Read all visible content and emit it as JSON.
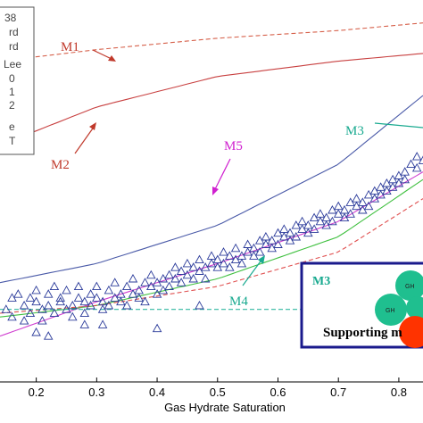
{
  "chart_data": {
    "type": "line",
    "xlabel": "Gas Hydrate Saturation",
    "ylabel": "",
    "xlim": [
      0.14,
      0.84
    ],
    "ylim": [
      0.0,
      1.0
    ],
    "x_ticks": [
      "0.2",
      "0.3",
      "0.4",
      "0.5",
      "0.6",
      "0.7",
      "0.8"
    ],
    "grid": false,
    "legend": {
      "placement": "top-left",
      "entries": [
        "38",
        "rd",
        "rd",
        "Lee",
        "0",
        "1",
        "2",
        "e",
        "T"
      ]
    },
    "series": [
      {
        "x": [
          0.14,
          0.3,
          0.5,
          0.7,
          0.84
        ],
        "y": [
          0.84,
          0.87,
          0.9,
          0.92,
          0.94
        ],
        "style": "dashed",
        "color": "#d6604a"
      },
      {
        "x": [
          0.14,
          0.3,
          0.5,
          0.7,
          0.84
        ],
        "y": [
          0.62,
          0.72,
          0.8,
          0.84,
          0.86
        ],
        "style": "solid",
        "color": "#c84040"
      },
      {
        "x": [
          0.14,
          0.3,
          0.5,
          0.7,
          0.84
        ],
        "y": [
          0.26,
          0.31,
          0.41,
          0.57,
          0.75
        ],
        "style": "solid",
        "color": "#4a5aa8"
      },
      {
        "x": [
          0.14,
          0.3,
          0.5,
          0.7,
          0.84
        ],
        "y": [
          0.12,
          0.21,
          0.31,
          0.42,
          0.55
        ],
        "style": "solid",
        "color": "#d040d0"
      },
      {
        "x": [
          0.14,
          0.3,
          0.5,
          0.7,
          0.84
        ],
        "y": [
          0.17,
          0.2,
          0.27,
          0.38,
          0.53
        ],
        "style": "solid",
        "color": "#40c040"
      },
      {
        "x": [
          0.14,
          0.3,
          0.5,
          0.7,
          0.84
        ],
        "y": [
          0.18,
          0.2,
          0.25,
          0.34,
          0.48
        ],
        "style": "dashed",
        "color": "#e05050"
      },
      {
        "x": [
          0.14,
          0.3,
          0.5,
          0.7,
          0.84
        ],
        "y": [
          0.19,
          0.19,
          0.19,
          0.19,
          0.19
        ],
        "style": "dashed",
        "color": "#30b8a0"
      }
    ],
    "measurements": {
      "marker": "triangle",
      "color": "#2b3b9a",
      "points": [
        [
          0.15,
          0.19
        ],
        [
          0.16,
          0.22
        ],
        [
          0.16,
          0.17
        ],
        [
          0.17,
          0.23
        ],
        [
          0.18,
          0.2
        ],
        [
          0.18,
          0.16
        ],
        [
          0.19,
          0.22
        ],
        [
          0.19,
          0.18
        ],
        [
          0.2,
          0.21
        ],
        [
          0.2,
          0.24
        ],
        [
          0.21,
          0.19
        ],
        [
          0.21,
          0.16
        ],
        [
          0.22,
          0.23
        ],
        [
          0.22,
          0.2
        ],
        [
          0.23,
          0.25
        ],
        [
          0.23,
          0.18
        ],
        [
          0.24,
          0.21
        ],
        [
          0.24,
          0.22
        ],
        [
          0.25,
          0.19
        ],
        [
          0.25,
          0.24
        ],
        [
          0.26,
          0.2
        ],
        [
          0.26,
          0.17
        ],
        [
          0.27,
          0.22
        ],
        [
          0.27,
          0.25
        ],
        [
          0.28,
          0.21
        ],
        [
          0.28,
          0.18
        ],
        [
          0.29,
          0.23
        ],
        [
          0.29,
          0.2
        ],
        [
          0.3,
          0.22
        ],
        [
          0.3,
          0.25
        ],
        [
          0.31,
          0.19
        ],
        [
          0.31,
          0.21
        ],
        [
          0.32,
          0.24
        ],
        [
          0.32,
          0.2
        ],
        [
          0.33,
          0.22
        ],
        [
          0.33,
          0.26
        ],
        [
          0.34,
          0.21
        ],
        [
          0.34,
          0.23
        ],
        [
          0.35,
          0.25
        ],
        [
          0.35,
          0.2
        ],
        [
          0.36,
          0.23
        ],
        [
          0.36,
          0.27
        ],
        [
          0.37,
          0.22
        ],
        [
          0.37,
          0.24
        ],
        [
          0.38,
          0.26
        ],
        [
          0.38,
          0.21
        ],
        [
          0.39,
          0.25
        ],
        [
          0.39,
          0.28
        ],
        [
          0.4,
          0.23
        ],
        [
          0.4,
          0.26
        ],
        [
          0.41,
          0.27
        ],
        [
          0.41,
          0.24
        ],
        [
          0.42,
          0.28
        ],
        [
          0.42,
          0.25
        ],
        [
          0.43,
          0.27
        ],
        [
          0.43,
          0.3
        ],
        [
          0.44,
          0.26
        ],
        [
          0.44,
          0.29
        ],
        [
          0.45,
          0.28
        ],
        [
          0.45,
          0.31
        ],
        [
          0.46,
          0.27
        ],
        [
          0.46,
          0.3
        ],
        [
          0.47,
          0.29
        ],
        [
          0.47,
          0.32
        ],
        [
          0.48,
          0.3
        ],
        [
          0.48,
          0.27
        ],
        [
          0.49,
          0.31
        ],
        [
          0.49,
          0.33
        ],
        [
          0.5,
          0.3
        ],
        [
          0.5,
          0.32
        ],
        [
          0.51,
          0.31
        ],
        [
          0.51,
          0.34
        ],
        [
          0.52,
          0.33
        ],
        [
          0.52,
          0.3
        ],
        [
          0.53,
          0.32
        ],
        [
          0.53,
          0.35
        ],
        [
          0.54,
          0.33
        ],
        [
          0.54,
          0.31
        ],
        [
          0.55,
          0.34
        ],
        [
          0.55,
          0.36
        ],
        [
          0.56,
          0.33
        ],
        [
          0.56,
          0.35
        ],
        [
          0.57,
          0.37
        ],
        [
          0.57,
          0.34
        ],
        [
          0.58,
          0.36
        ],
        [
          0.58,
          0.38
        ],
        [
          0.59,
          0.35
        ],
        [
          0.59,
          0.37
        ],
        [
          0.6,
          0.39
        ],
        [
          0.6,
          0.36
        ],
        [
          0.61,
          0.38
        ],
        [
          0.61,
          0.4
        ],
        [
          0.62,
          0.37
        ],
        [
          0.62,
          0.39
        ],
        [
          0.63,
          0.41
        ],
        [
          0.63,
          0.38
        ],
        [
          0.64,
          0.4
        ],
        [
          0.64,
          0.42
        ],
        [
          0.65,
          0.39
        ],
        [
          0.65,
          0.41
        ],
        [
          0.66,
          0.43
        ],
        [
          0.66,
          0.4
        ],
        [
          0.67,
          0.42
        ],
        [
          0.67,
          0.44
        ],
        [
          0.68,
          0.41
        ],
        [
          0.68,
          0.43
        ],
        [
          0.69,
          0.45
        ],
        [
          0.69,
          0.42
        ],
        [
          0.7,
          0.44
        ],
        [
          0.7,
          0.46
        ],
        [
          0.71,
          0.43
        ],
        [
          0.71,
          0.45
        ],
        [
          0.72,
          0.47
        ],
        [
          0.72,
          0.44
        ],
        [
          0.73,
          0.46
        ],
        [
          0.73,
          0.48
        ],
        [
          0.74,
          0.45
        ],
        [
          0.74,
          0.47
        ],
        [
          0.75,
          0.49
        ],
        [
          0.75,
          0.46
        ],
        [
          0.76,
          0.48
        ],
        [
          0.76,
          0.5
        ],
        [
          0.77,
          0.49
        ],
        [
          0.77,
          0.51
        ],
        [
          0.78,
          0.5
        ],
        [
          0.78,
          0.52
        ],
        [
          0.79,
          0.51
        ],
        [
          0.79,
          0.53
        ],
        [
          0.8,
          0.52
        ],
        [
          0.8,
          0.54
        ],
        [
          0.81,
          0.53
        ],
        [
          0.81,
          0.55
        ],
        [
          0.82,
          0.57
        ],
        [
          0.83,
          0.56
        ],
        [
          0.83,
          0.59
        ],
        [
          0.84,
          0.58
        ],
        [
          0.2,
          0.13
        ],
        [
          0.22,
          0.12
        ],
        [
          0.28,
          0.15
        ],
        [
          0.31,
          0.15
        ],
        [
          0.4,
          0.14
        ],
        [
          0.47,
          0.2
        ]
      ]
    },
    "annotations": [
      {
        "text": "M1",
        "color": "#c0392b"
      },
      {
        "text": "M2",
        "color": "#c0392b"
      },
      {
        "text": "M3",
        "color": "#1aaa90"
      },
      {
        "text": "M4",
        "color": "#1aaa90"
      },
      {
        "text": "M5",
        "color": "#d020d0"
      }
    ],
    "inset": {
      "title": "M3",
      "caption": "Supporting m",
      "grains": [
        "GH",
        "GH"
      ],
      "border_color": "#1a1a8c"
    }
  }
}
